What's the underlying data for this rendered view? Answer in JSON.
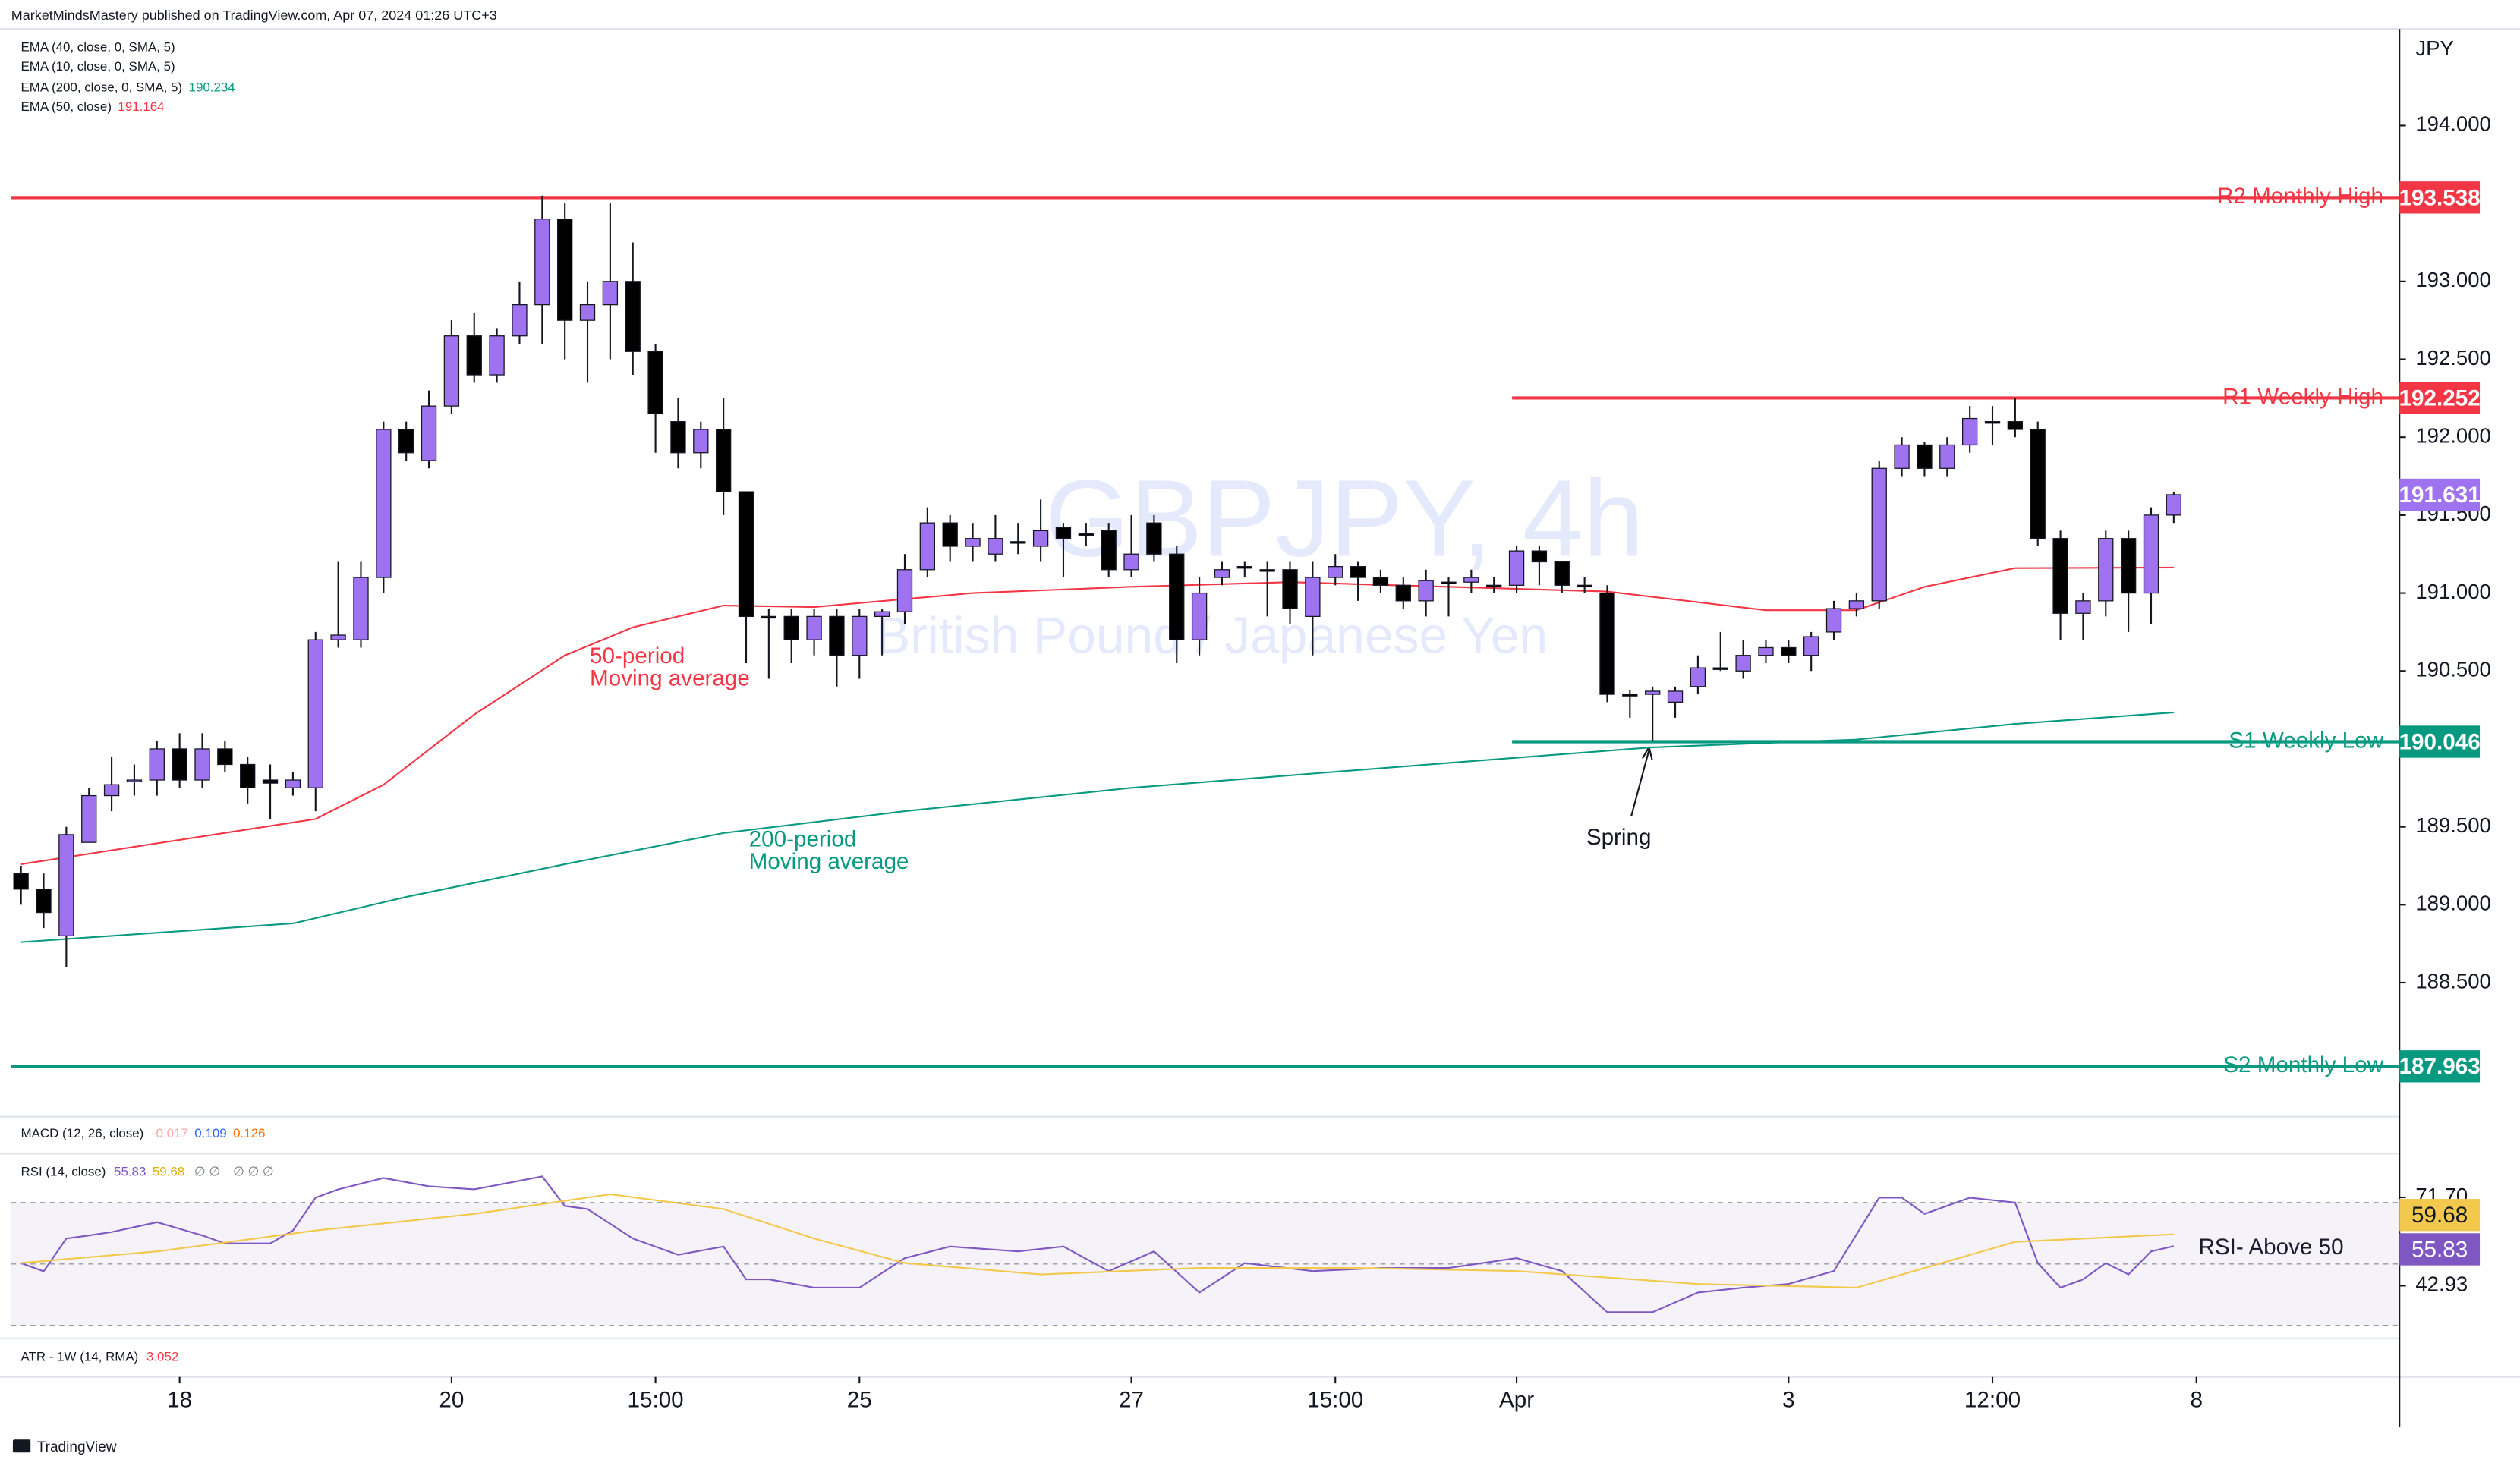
{
  "header": {
    "publisher": "MarketMindsMastery published on TradingView.com, Apr 07, 2024 01:26 UTC+3",
    "watermark_symbol": "GBPJPY, 4h",
    "watermark_name": "British Pound / Japanese Yen",
    "currency": "JPY",
    "footer": "TradingView"
  },
  "panes": {
    "macd": {
      "title": "MACD (12, 26, close)",
      "values": [
        -0.017,
        0.109,
        0.126
      ]
    },
    "atr": {
      "title": "ATR - 1W (14, RMA)",
      "value": 3.052
    }
  },
  "annotations": {
    "ema50": [
      "50-period",
      "Moving average"
    ],
    "ema200": [
      "200-period",
      "Moving average"
    ],
    "spring": "Spring",
    "rsi": "RSI- Above 50"
  },
  "chart_data": [
    {
      "type": "candlestick",
      "up_color": "#9f72f0",
      "down_color": "#000000",
      "wick_color": "#131722",
      "grid": false,
      "xlim": [
        -0.43,
        104.96
      ],
      "ylim": [
        187.64,
        194.62
      ],
      "yticks": [
        {
          "value": 194,
          "label": "194.000"
        },
        {
          "value": 193,
          "label": "193.000"
        },
        {
          "value": 192.5,
          "label": "192.500"
        },
        {
          "value": 192,
          "label": "192.000"
        },
        {
          "value": 191.5,
          "label": "191.500"
        },
        {
          "value": 191,
          "label": "191.000"
        },
        {
          "value": 190.5,
          "label": "190.500"
        },
        {
          "value": 189.5,
          "label": "189.500"
        },
        {
          "value": 189,
          "label": "189.000"
        },
        {
          "value": 188.5,
          "label": "188.500"
        }
      ],
      "xticks": [
        {
          "value": 7,
          "label": "18"
        },
        {
          "value": 19,
          "label": "20"
        },
        {
          "value": 28,
          "label": "15:00"
        },
        {
          "value": 37,
          "label": "25"
        },
        {
          "value": 49,
          "label": "27"
        },
        {
          "value": 58,
          "label": "15:00"
        },
        {
          "value": 66,
          "label": "Apr"
        },
        {
          "value": 78,
          "label": "3"
        },
        {
          "value": 87,
          "label": "12:00"
        },
        {
          "value": 96,
          "label": "8"
        }
      ],
      "open": [
        189.2,
        189.1,
        188.8,
        189.4,
        189.7,
        189.79,
        189.8,
        190.0,
        189.8,
        190.0,
        189.9,
        189.8,
        189.75,
        189.75,
        190.7,
        190.7,
        191.1,
        192.05,
        191.85,
        192.2,
        192.65,
        192.4,
        192.65,
        192.85,
        193.4,
        192.75,
        192.85,
        193.0,
        192.55,
        192.1,
        191.9,
        192.05,
        191.65,
        190.85,
        190.85,
        190.7,
        190.85,
        190.6,
        190.85,
        190.88,
        191.15,
        191.45,
        191.3,
        191.25,
        191.33,
        191.3,
        191.42,
        191.38,
        191.4,
        191.15,
        191.45,
        191.25,
        190.7,
        191.1,
        191.17,
        191.15,
        191.15,
        190.85,
        191.1,
        191.17,
        191.1,
        191.05,
        190.95,
        191.07,
        191.07,
        191.05,
        191.05,
        191.27,
        191.2,
        191.05,
        191.0,
        190.35,
        190.35,
        190.3,
        190.4,
        190.52,
        190.5,
        190.6,
        190.65,
        190.6,
        190.75,
        190.9,
        190.95,
        191.8,
        191.95,
        191.8,
        191.95,
        192.1,
        192.1,
        192.05,
        191.35,
        190.87,
        190.95,
        191.35,
        191.0,
        191.5
      ],
      "high": [
        189.25,
        189.2,
        189.5,
        189.75,
        189.95,
        189.9,
        190.05,
        190.1,
        190.1,
        190.05,
        189.95,
        189.9,
        189.85,
        190.75,
        191.2,
        191.2,
        192.1,
        192.1,
        192.3,
        192.75,
        192.8,
        192.7,
        193.0,
        193.55,
        193.5,
        193.0,
        193.5,
        193.25,
        192.6,
        192.25,
        192.1,
        192.25,
        191.65,
        190.9,
        190.9,
        190.9,
        190.9,
        190.9,
        190.9,
        191.25,
        191.55,
        191.5,
        191.45,
        191.5,
        191.45,
        191.6,
        191.45,
        191.45,
        191.45,
        191.5,
        191.5,
        191.3,
        191.1,
        191.2,
        191.2,
        191.2,
        191.2,
        191.2,
        191.25,
        191.2,
        191.15,
        191.1,
        191.15,
        191.1,
        191.15,
        191.1,
        191.3,
        191.3,
        191.2,
        191.1,
        191.05,
        190.38,
        190.4,
        190.4,
        190.6,
        190.75,
        190.7,
        190.7,
        190.7,
        190.75,
        190.95,
        191.0,
        191.85,
        192.0,
        191.97,
        192.0,
        192.2,
        192.2,
        192.25,
        192.1,
        191.4,
        191.0,
        191.4,
        191.4,
        191.55,
        191.65
      ],
      "low": [
        189.0,
        188.85,
        188.6,
        189.4,
        189.6,
        189.7,
        189.7,
        189.75,
        189.75,
        189.85,
        189.65,
        189.55,
        189.7,
        189.6,
        190.65,
        190.65,
        191.0,
        191.85,
        191.8,
        192.15,
        192.35,
        192.35,
        192.6,
        192.6,
        192.5,
        192.35,
        192.5,
        192.4,
        191.9,
        191.8,
        191.8,
        191.5,
        190.55,
        190.45,
        190.55,
        190.6,
        190.4,
        190.45,
        190.6,
        190.8,
        191.1,
        191.2,
        191.2,
        191.2,
        191.25,
        191.2,
        191.1,
        191.3,
        191.1,
        191.1,
        191.2,
        190.55,
        190.6,
        191.05,
        191.1,
        190.85,
        190.8,
        190.6,
        191.05,
        190.95,
        191.0,
        190.9,
        190.85,
        190.85,
        191.0,
        191.0,
        191.0,
        191.05,
        191.0,
        191.0,
        190.3,
        190.2,
        190.05,
        190.2,
        190.35,
        190.5,
        190.45,
        190.55,
        190.55,
        190.5,
        190.7,
        190.85,
        190.9,
        191.75,
        191.75,
        191.75,
        191.9,
        191.95,
        192.0,
        191.3,
        190.7,
        190.7,
        190.85,
        190.75,
        190.8,
        191.45
      ],
      "close": [
        189.1,
        188.95,
        189.45,
        189.7,
        189.77,
        189.8,
        190.0,
        189.8,
        190.0,
        189.9,
        189.75,
        189.78,
        189.8,
        190.7,
        190.73,
        191.1,
        192.05,
        191.9,
        192.2,
        192.65,
        192.4,
        192.65,
        192.85,
        193.4,
        192.75,
        192.85,
        193.0,
        192.55,
        192.15,
        191.9,
        192.05,
        191.65,
        190.85,
        190.85,
        190.7,
        190.85,
        190.6,
        190.85,
        190.88,
        191.15,
        191.45,
        191.3,
        191.35,
        191.35,
        191.33,
        191.4,
        191.35,
        191.38,
        191.15,
        191.25,
        191.25,
        190.7,
        191.0,
        191.15,
        191.17,
        191.15,
        190.9,
        191.1,
        191.17,
        191.1,
        191.05,
        190.95,
        191.08,
        191.07,
        191.1,
        191.05,
        191.27,
        191.2,
        191.05,
        191.05,
        190.35,
        190.35,
        190.37,
        190.37,
        190.52,
        190.52,
        190.6,
        190.65,
        190.6,
        190.72,
        190.9,
        190.95,
        191.8,
        191.95,
        191.8,
        191.95,
        192.12,
        192.1,
        192.05,
        191.35,
        190.87,
        190.95,
        191.35,
        191.0,
        191.5,
        191.631
      ],
      "last_color": "#9f72f0",
      "overlays": [
        {
          "name": "EMA (40, close, 0, SMA, 5)"
        },
        {
          "name": "EMA (10, close, 0, SMA, 5)"
        },
        {
          "name": "EMA (200, close, 0, SMA, 5)",
          "color": "#089981",
          "x": [
            0,
            12,
            17,
            24,
            31,
            39,
            49,
            63,
            72,
            81,
            88,
            95
          ],
          "values": [
            188.76,
            188.88,
            189.05,
            189.26,
            189.46,
            189.6,
            189.75,
            189.91,
            190.01,
            190.06,
            190.16,
            190.234
          ]
        },
        {
          "name": "EMA (50, close)",
          "color": "#f23645",
          "x": [
            0,
            13,
            16,
            20,
            24,
            27,
            31,
            35,
            42,
            49,
            56,
            63,
            70,
            77,
            81,
            84,
            88,
            95
          ],
          "values": [
            189.26,
            189.55,
            189.77,
            190.22,
            190.6,
            190.78,
            190.92,
            190.91,
            191.0,
            191.04,
            191.07,
            191.04,
            191.01,
            190.89,
            190.89,
            191.04,
            191.16,
            191.164
          ]
        }
      ],
      "levels": [
        {
          "label": "R2 Monthly High",
          "value": 193.538,
          "color": "#f23645"
        },
        {
          "label": "R1 Weekly High",
          "value": 192.252,
          "color": "#f23645",
          "from": 65.8
        },
        {
          "label": "S1 Weekly Low",
          "value": 190.046,
          "color": "#089981",
          "from": 65.8
        },
        {
          "label": "S2 Monthly Low",
          "value": 187.963,
          "color": "#089981"
        }
      ]
    },
    {
      "type": "line",
      "title": "RSI (14, close)",
      "extras": [
        "∅ ∅",
        "∅ ∅ ∅"
      ],
      "ylim": [
        26.3,
        84.9
      ],
      "yticks": [
        {
          "value": 71.7,
          "label": "71.70"
        },
        42.93
      ],
      "band": [
        30,
        70
      ],
      "midline": 50,
      "band_color": "#7e57c2",
      "series": [
        {
          "color": "#7e57c2",
          "x": [
            0,
            1,
            2,
            3,
            4,
            6,
            8,
            9,
            11,
            12,
            13,
            14,
            16,
            18,
            20,
            23,
            24,
            25,
            27,
            29,
            31,
            32,
            33,
            35,
            37,
            39,
            41,
            44,
            46,
            48,
            50,
            52,
            54,
            57,
            60,
            63,
            66,
            68,
            70,
            72,
            74,
            76,
            78,
            80,
            82,
            83,
            84,
            86,
            88,
            89,
            90,
            91,
            92,
            93,
            94,
            95
          ],
          "values": [
            50.3,
            47.6,
            58.3,
            59.3,
            60.4,
            63.6,
            59.3,
            56.7,
            56.7,
            60.9,
            71.6,
            74.3,
            78,
            75.3,
            74.3,
            78.5,
            68.9,
            67.9,
            58.3,
            53,
            55.7,
            45,
            45,
            42.3,
            42.3,
            51.9,
            55.7,
            54.1,
            55.7,
            47.7,
            54.1,
            40.7,
            50.3,
            47.7,
            48.7,
            48.7,
            51.9,
            47.7,
            34.3,
            34.3,
            40.7,
            42.3,
            43.5,
            47.7,
            71.6,
            71.6,
            66.3,
            71.6,
            70,
            50.3,
            42.3,
            45,
            50.3,
            46.6,
            54.1,
            55.83
          ]
        },
        {
          "color": "#f2c94c",
          "x": [
            0,
            6,
            13,
            20,
            26,
            31,
            35,
            39,
            45,
            52,
            59,
            66,
            74,
            81,
            88,
            95
          ],
          "values": [
            50.3,
            54.1,
            60.9,
            66.3,
            72.7,
            67.9,
            58.3,
            50.3,
            46.6,
            48.7,
            48.7,
            47.7,
            43.5,
            42.3,
            57.2,
            59.68
          ]
        }
      ]
    }
  ]
}
